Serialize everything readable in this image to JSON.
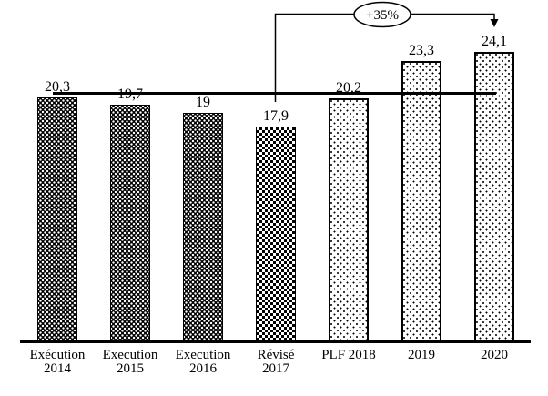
{
  "chart_data": {
    "type": "bar",
    "categories": [
      [
        "Exécution",
        "2014"
      ],
      [
        "Execution",
        "2015"
      ],
      [
        "Execution",
        "2016"
      ],
      [
        "Révisé",
        "2017"
      ],
      [
        "PLF 2018"
      ],
      [
        "2019"
      ],
      [
        "2020"
      ]
    ],
    "values": [
      20.3,
      19.7,
      19,
      17.9,
      20.2,
      23.3,
      24.1
    ],
    "value_labels": [
      "20,3",
      "19,7",
      "19",
      "17,9",
      "20,2",
      "23,3",
      "24,1"
    ],
    "patterns": [
      "black-white-dots",
      "black-white-dots",
      "black-white-dots",
      "checkerboard",
      "white-black-dots",
      "white-black-dots",
      "white-black-dots"
    ],
    "annotation": "+35%",
    "reference_line_value": 20.3,
    "title": "",
    "xlabel": "",
    "ylabel": "",
    "ylim": [
      0,
      26
    ],
    "grid": false,
    "legend": false,
    "colors": {
      "foreground": "#000000",
      "background": "#ffffff"
    }
  }
}
